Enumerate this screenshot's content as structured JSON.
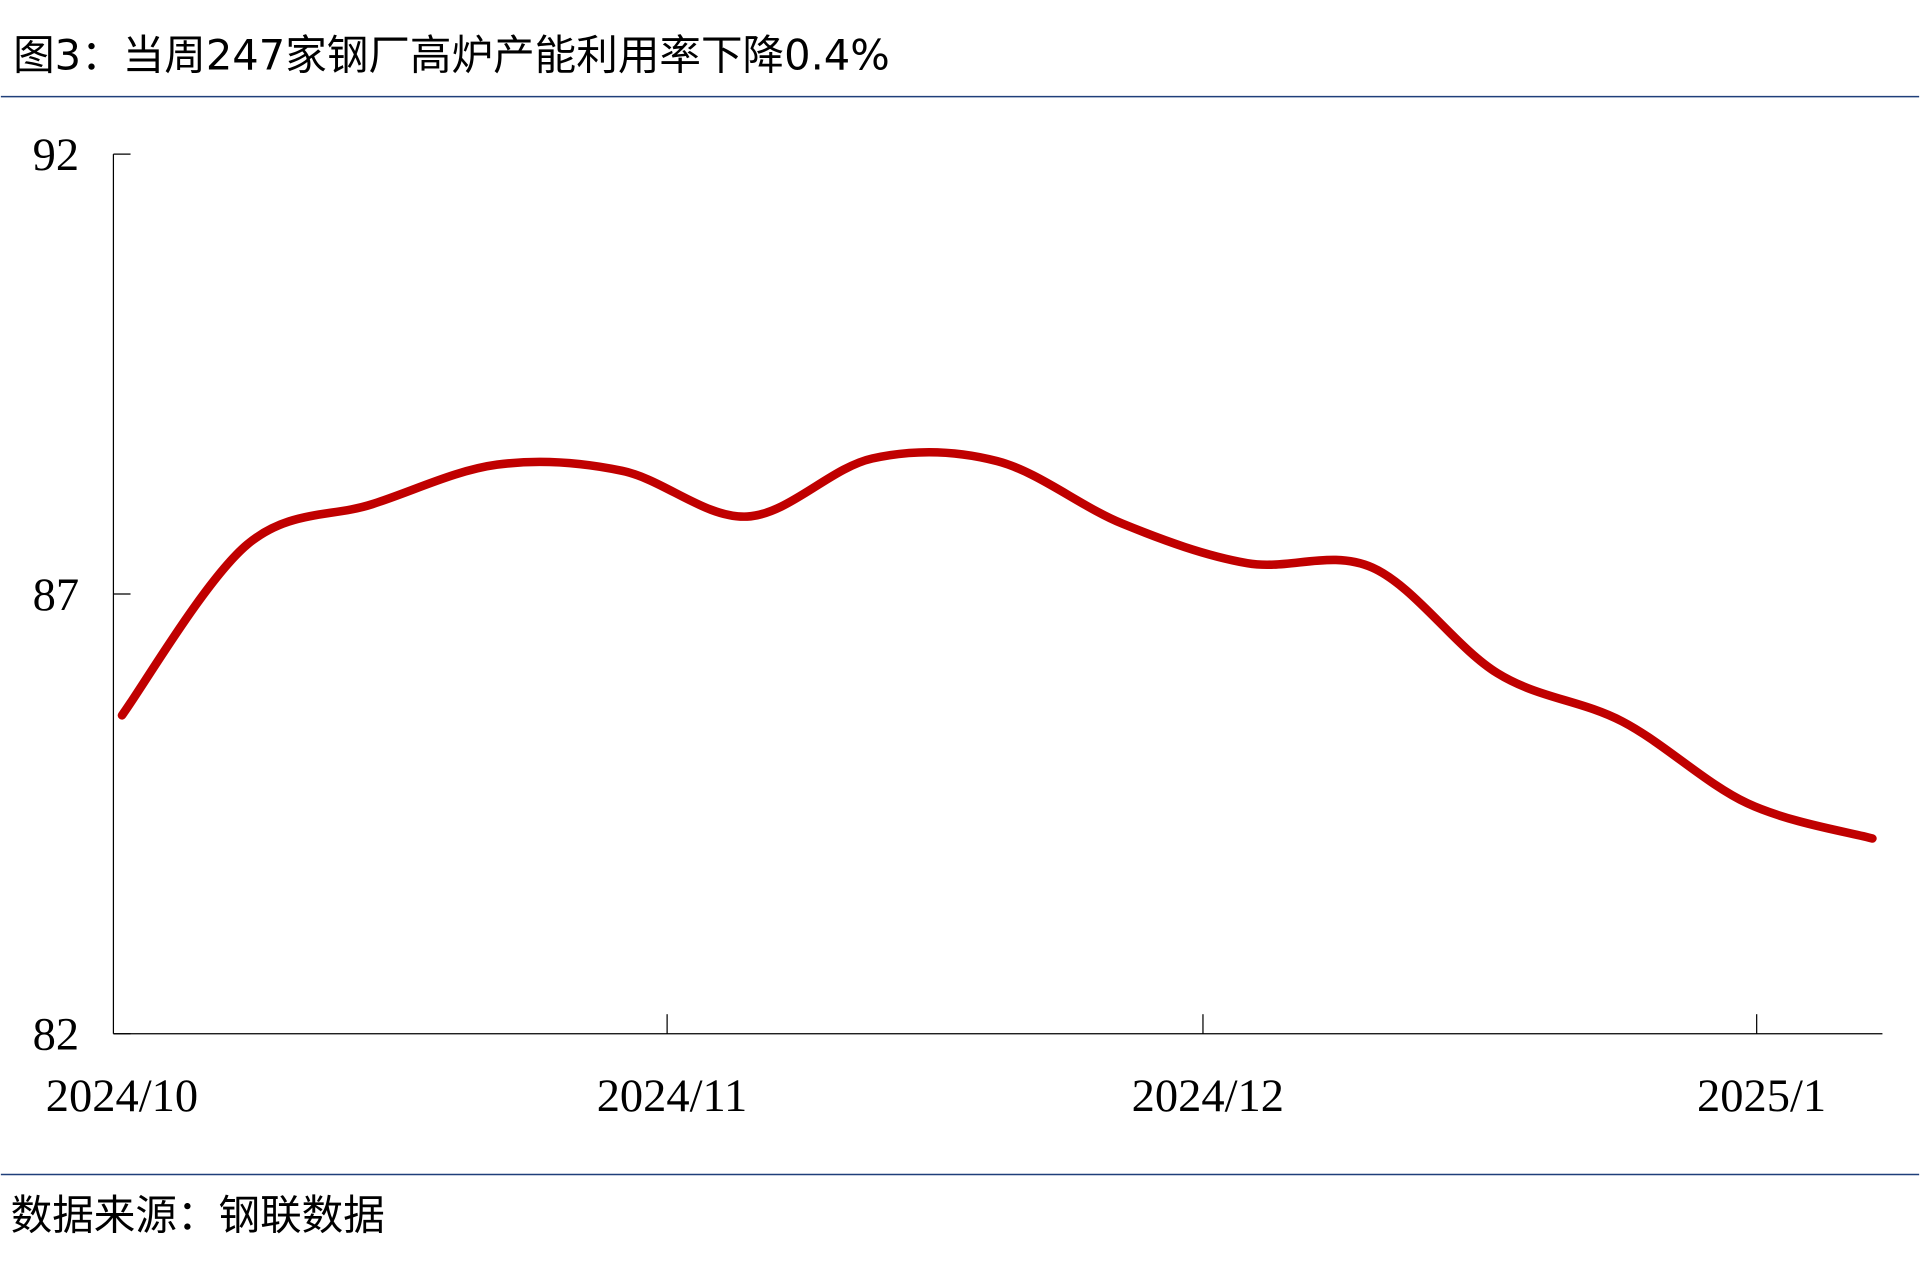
{
  "title": "图3：当周247家钢厂高炉产能利用率下降0.4%",
  "source": "数据来源：钢联数据",
  "chart_data": {
    "type": "line",
    "title": "图3：当周247家钢厂高炉产能利用率下降0.4%",
    "xlabel": "",
    "ylabel": "",
    "ylim": [
      82,
      92
    ],
    "yticks": [
      "92",
      "87",
      "82"
    ],
    "xticks": [
      {
        "label": "2024/10",
        "date": "2024-10-01"
      },
      {
        "label": "2024/11",
        "date": "2024-11-01"
      },
      {
        "label": "2024/12",
        "date": "2024-12-01"
      },
      {
        "label": "2025/1",
        "date": "2025-01-01"
      }
    ],
    "xlim": [
      "2024-10-01",
      "2025-01-10"
    ],
    "grid": false,
    "line_color": "#C00000",
    "smooth": true,
    "x": [
      "2024-10-01",
      "2024-10-08",
      "2024-10-15",
      "2024-10-22",
      "2024-10-29",
      "2024-11-05",
      "2024-11-12",
      "2024-11-19",
      "2024-11-26",
      "2024-12-03",
      "2024-12-10",
      "2024-12-17",
      "2024-12-24",
      "2024-12-31",
      "2025-01-07"
    ],
    "values": [
      85.62,
      87.56,
      88.02,
      88.47,
      88.4,
      87.88,
      88.54,
      88.51,
      87.8,
      87.35,
      87.3,
      86.1,
      85.55,
      84.62,
      84.22
    ]
  }
}
